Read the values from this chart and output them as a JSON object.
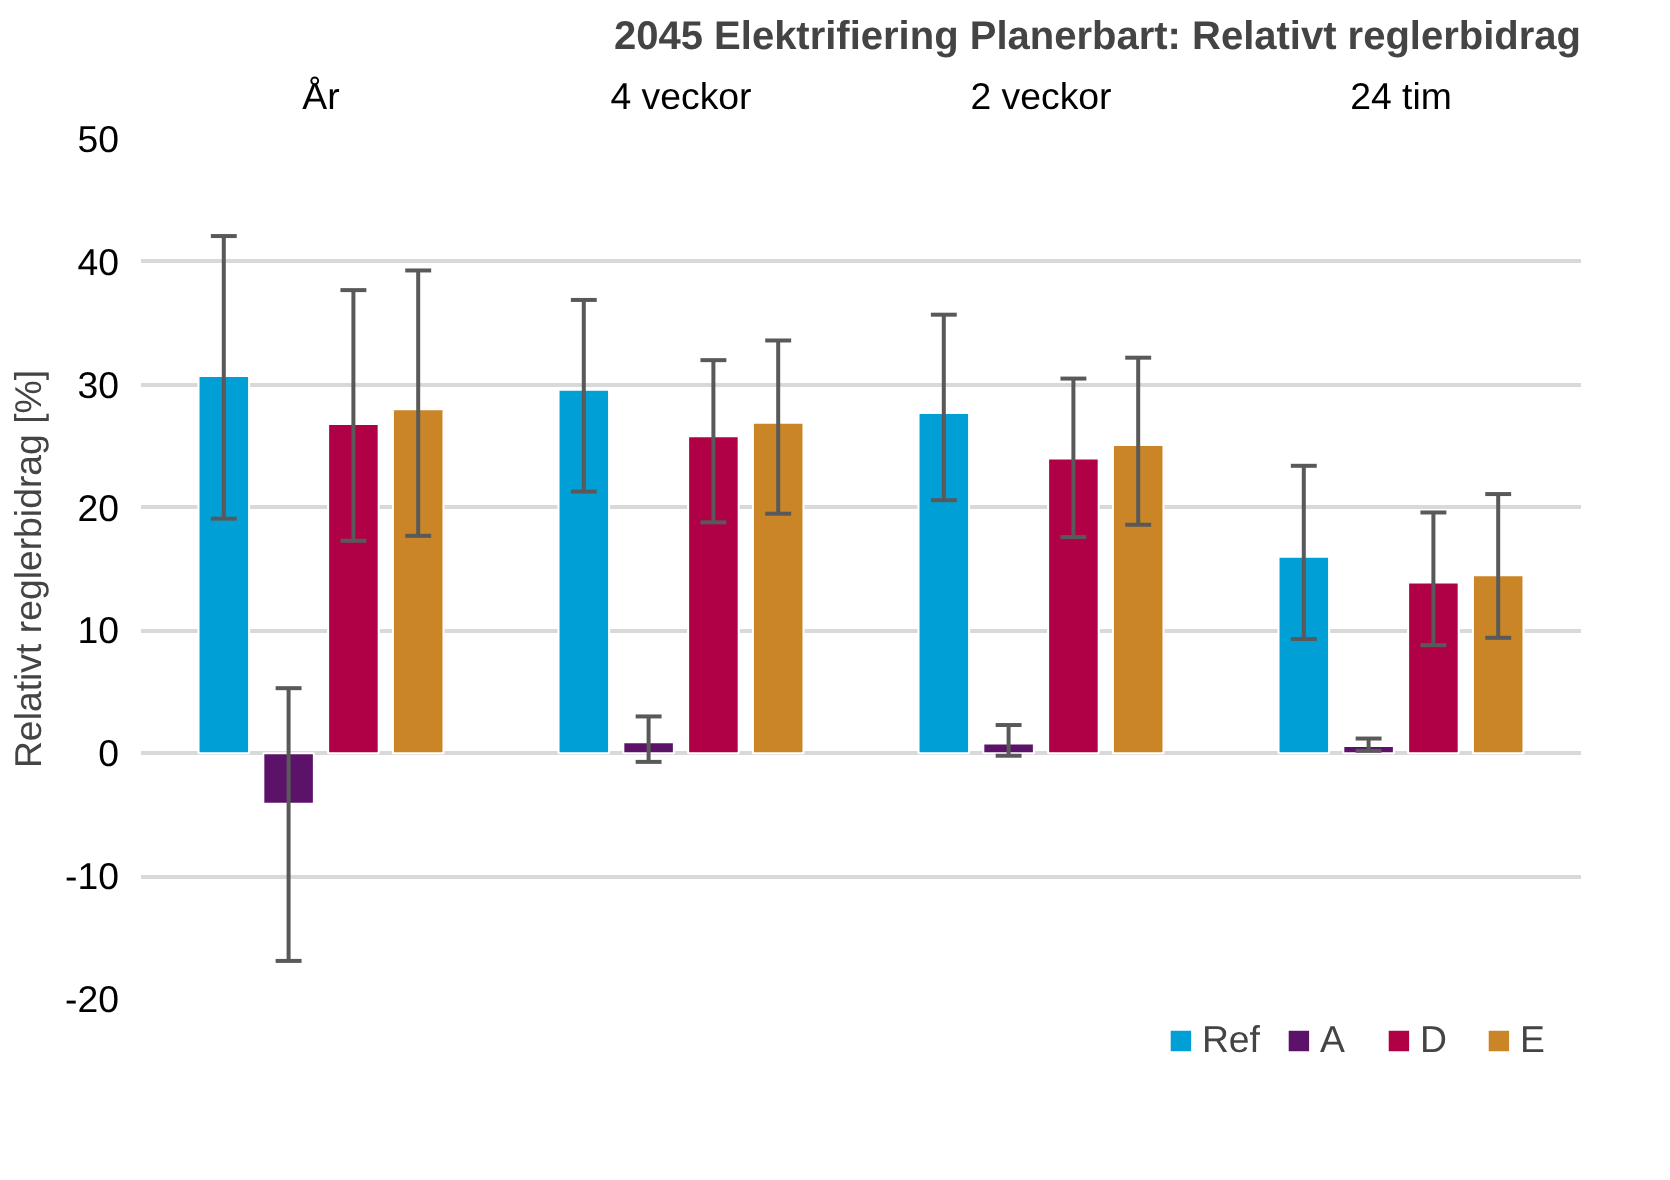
{
  "chart_data": {
    "type": "bar",
    "title": "2045 Elektrifiering Planerbart: Relativt reglerbidrag",
    "ylabel": "Relativt reglerbidrag [%]",
    "categories": [
      "År",
      "4 veckor",
      "2 veckor",
      "24 tim"
    ],
    "series": [
      {
        "name": "Ref",
        "color": "#00a0d6",
        "values": [
          30.7,
          29.6,
          27.7,
          16.0
        ],
        "errors": [
          [
            19.1,
            42.1
          ],
          [
            21.3,
            36.9
          ],
          [
            20.6,
            35.7
          ],
          [
            9.3,
            23.4
          ]
        ]
      },
      {
        "name": "A",
        "color": "#5c1268",
        "values": [
          -4.1,
          0.9,
          0.8,
          0.6
        ],
        "errors": [
          [
            -16.9,
            5.3
          ],
          [
            -0.7,
            3.0
          ],
          [
            -0.2,
            2.3
          ],
          [
            0.2,
            1.2
          ]
        ]
      },
      {
        "name": "D",
        "color": "#b00046",
        "values": [
          26.8,
          25.8,
          24.0,
          13.9
        ],
        "errors": [
          [
            17.3,
            37.7
          ],
          [
            18.8,
            32.0
          ],
          [
            17.6,
            30.5
          ],
          [
            8.8,
            19.6
          ]
        ]
      },
      {
        "name": "E",
        "color": "#c98526",
        "values": [
          28.0,
          26.9,
          25.1,
          14.5
        ],
        "errors": [
          [
            17.7,
            39.3
          ],
          [
            19.5,
            33.6
          ],
          [
            18.6,
            32.2
          ],
          [
            9.4,
            21.1
          ]
        ]
      }
    ],
    "ylim": [
      -20,
      50
    ],
    "yticks": [
      {
        "value": -20,
        "label": "-20"
      },
      {
        "value": -10,
        "label": "-10"
      },
      0,
      10,
      20,
      30,
      40,
      50
    ],
    "grid": "y",
    "legend": "bottom"
  }
}
